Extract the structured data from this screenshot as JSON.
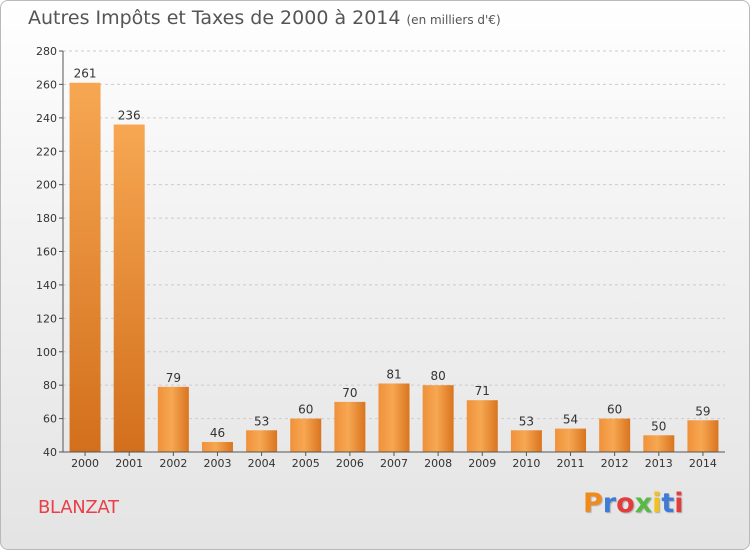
{
  "header": {
    "title": "Autres Impôts et Taxes de 2000 à 2014",
    "unit_note": "(en milliers d'€)"
  },
  "footer": {
    "commune": "BLANZAT",
    "logo_text": "Proxiti",
    "logo_colors": [
      "#f08a1c",
      "#3f7bd6",
      "#e23d3d",
      "#58b947",
      "#f3c11a",
      "#3f7bd6",
      "#e23d3d"
    ]
  },
  "colors": {
    "bar_light": "#f7a752",
    "bar_dark": "#d9741f",
    "axis": "#555555",
    "grid": "#cccccc",
    "label": "#333333"
  },
  "chart_data": {
    "type": "bar",
    "title": "Autres Impôts et Taxes de 2000 à 2014",
    "subtitle": "(en milliers d'€)",
    "xlabel": "",
    "ylabel": "",
    "categories": [
      "2000",
      "2001",
      "2002",
      "2003",
      "2004",
      "2005",
      "2006",
      "2007",
      "2008",
      "2009",
      "2010",
      "2011",
      "2012",
      "2013",
      "2014"
    ],
    "values": [
      261,
      236,
      79,
      46,
      53,
      60,
      70,
      81,
      80,
      71,
      53,
      54,
      60,
      50,
      59
    ],
    "data_labels": [
      "261",
      "236",
      "79",
      "46",
      "53",
      "60",
      "70",
      "81",
      "80",
      "71",
      "53",
      "54",
      "60",
      "50",
      "59"
    ],
    "ylim": [
      40,
      280
    ],
    "yticks": [
      40,
      60,
      80,
      100,
      120,
      140,
      160,
      180,
      200,
      220,
      240,
      260,
      280
    ],
    "ytick_labels": [
      "40",
      "60",
      "80",
      "100",
      "120",
      "140",
      "160",
      "180",
      "200",
      "220",
      "240",
      "260",
      "280"
    ],
    "grid": "horizontal dashed",
    "legend": "none"
  }
}
